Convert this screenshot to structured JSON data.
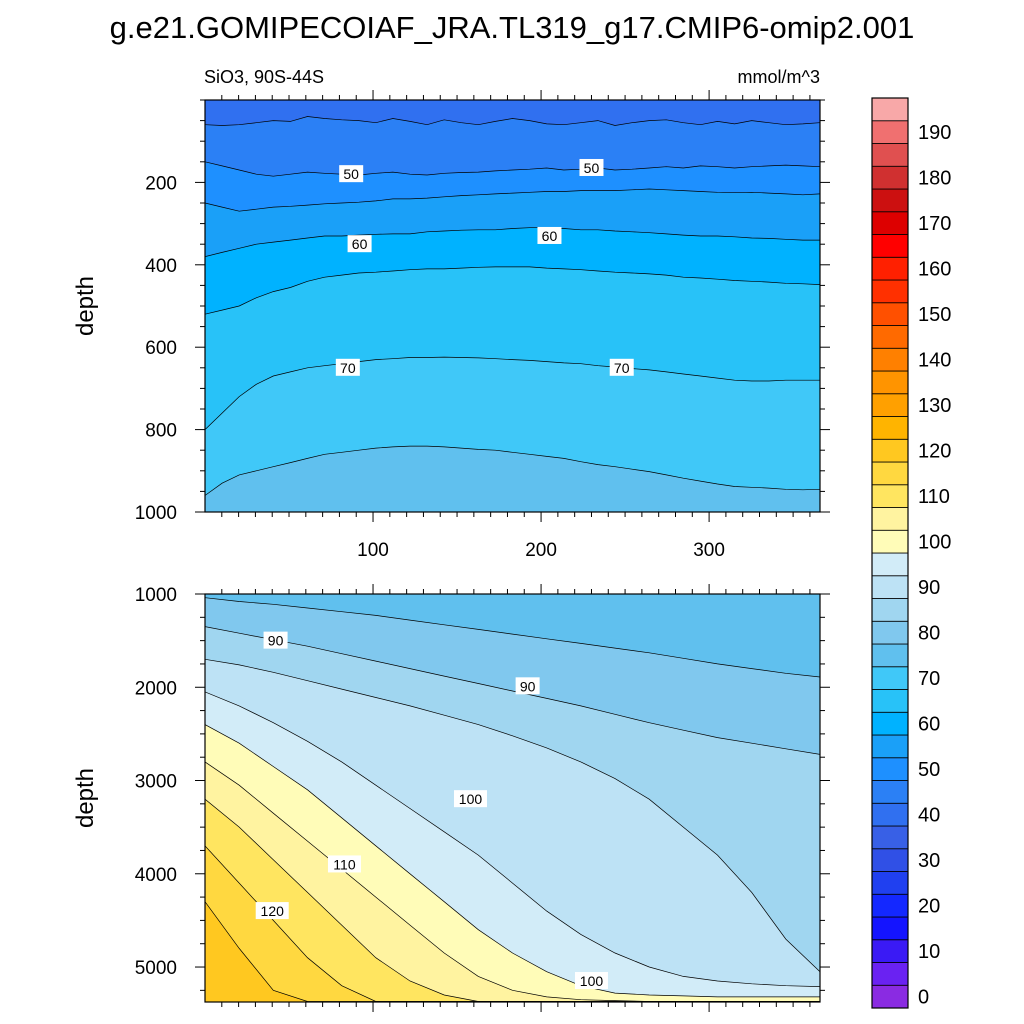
{
  "title": "g.e21.GOMIPECOIAF_JRA.TL319_g17.CMIP6-omip2.001",
  "chart_data": {
    "type": "heatmap",
    "variable": "SiO3",
    "region": "90S-44S",
    "left_string": "SiO3, 90S-44S",
    "units": "mmol/m^3",
    "ylabel": "depth",
    "x_range": [
      0,
      366
    ],
    "x_ticks": [
      100,
      200,
      300
    ],
    "colorbar": {
      "levels": [
        0,
        5,
        10,
        15,
        20,
        25,
        30,
        35,
        40,
        45,
        50,
        55,
        60,
        65,
        70,
        75,
        80,
        85,
        90,
        95,
        100,
        105,
        110,
        115,
        120,
        125,
        130,
        135,
        140,
        145,
        150,
        155,
        160,
        165,
        170,
        175,
        180,
        185,
        190,
        195
      ],
      "tick_labels": [
        "0",
        "10",
        "20",
        "30",
        "40",
        "50",
        "60",
        "70",
        "80",
        "90",
        "100",
        "110",
        "120",
        "130",
        "140",
        "150",
        "160",
        "170",
        "180",
        "190"
      ],
      "colors": [
        "#8a2be2",
        "#6a22f2",
        "#3a1af5",
        "#1414ff",
        "#1428ff",
        "#2040f0",
        "#3050e6",
        "#3860e6",
        "#3070f0",
        "#2b80f5",
        "#1e90ff",
        "#1aa0f8",
        "#00b2ff",
        "#28c2f8",
        "#40c8f8",
        "#60c0ee",
        "#80c8ee",
        "#a0d6f0",
        "#bde2f5",
        "#d2ecf8",
        "#fffcb8",
        "#fff3a0",
        "#ffe560",
        "#ffd840",
        "#ffc820",
        "#ffb400",
        "#ffa000",
        "#ff9400",
        "#ff8000",
        "#ff6a00",
        "#ff5000",
        "#ff3000",
        "#ff2000",
        "#ff0000",
        "#dd0000",
        "#cc1010",
        "#d03030",
        "#e05050",
        "#f07070",
        "#f8a8a8"
      ]
    },
    "panels": [
      {
        "name": "upper",
        "y_range": [
          0,
          1000
        ],
        "y_ticks": [
          200,
          400,
          600,
          800,
          1000
        ],
        "contours": [
          {
            "level": 45,
            "depth": [
              60,
              62,
              60,
              55,
              50,
              52,
              40,
              45,
              48,
              50,
              55,
              45,
              52,
              60,
              48,
              55,
              60,
              52,
              45,
              50,
              58,
              60,
              55,
              50,
              62,
              55,
              50,
              48,
              55,
              60,
              52,
              58,
              50,
              55,
              60,
              58,
              55
            ]
          },
          {
            "level": 50,
            "depth": [
              150,
              160,
              170,
              180,
              185,
              180,
              175,
              178,
              180,
              182,
              178,
              175,
              180,
              182,
              178,
              176,
              175,
              172,
              170,
              168,
              165,
              170,
              168,
              165,
              170,
              168,
              165,
              162,
              165,
              160,
              162,
              165,
              162,
              160,
              158,
              160,
              162
            ]
          },
          {
            "level": 55,
            "depth": [
              250,
              260,
              270,
              265,
              260,
              258,
              255,
              252,
              250,
              248,
              245,
              240,
              240,
              238,
              235,
              232,
              230,
              228,
              226,
              224,
              222,
              222,
              220,
              220,
              220,
              218,
              216,
              218,
              220,
              222,
              224,
              225,
              224,
              226,
              228,
              230,
              228
            ]
          },
          {
            "level": 60,
            "depth": [
              380,
              370,
              360,
              350,
              345,
              340,
              335,
              330,
              330,
              328,
              326,
              325,
              325,
              320,
              318,
              316,
              315,
              315,
              312,
              310,
              310,
              312,
              315,
              315,
              318,
              320,
              322,
              325,
              328,
              330,
              330,
              332,
              335,
              336,
              338,
              340,
              340
            ]
          },
          {
            "level": 65,
            "depth": [
              520,
              510,
              500,
              480,
              465,
              455,
              440,
              430,
              425,
              420,
              418,
              415,
              412,
              410,
              410,
              408,
              406,
              405,
              405,
              405,
              408,
              410,
              412,
              415,
              418,
              420,
              422,
              425,
              430,
              432,
              435,
              438,
              440,
              442,
              445,
              446,
              448
            ]
          },
          {
            "level": 70,
            "depth": [
              800,
              760,
              720,
              690,
              670,
              660,
              650,
              645,
              640,
              635,
              630,
              628,
              625,
              625,
              624,
              625,
              626,
              628,
              630,
              632,
              635,
              638,
              640,
              645,
              648,
              652,
              655,
              660,
              665,
              670,
              675,
              680,
              682,
              682,
              680,
              680,
              680
            ]
          },
          {
            "level": 75,
            "depth": [
              960,
              930,
              910,
              900,
              890,
              880,
              870,
              860,
              855,
              850,
              845,
              842,
              840,
              840,
              842,
              845,
              848,
              850,
              855,
              860,
              865,
              870,
              878,
              885,
              890,
              896,
              902,
              910,
              918,
              925,
              932,
              938,
              940,
              942,
              945,
              946,
              945
            ]
          }
        ],
        "contour_labels": [
          {
            "text": "50",
            "x": 87,
            "depth": 180
          },
          {
            "text": "50",
            "x": 230,
            "depth": 165
          },
          {
            "text": "60",
            "x": 92,
            "depth": 350
          },
          {
            "text": "60",
            "x": 205,
            "depth": 330
          },
          {
            "text": "70",
            "x": 85,
            "depth": 650
          },
          {
            "text": "70",
            "x": 248,
            "depth": 650
          }
        ]
      },
      {
        "name": "lower",
        "y_range": [
          1000,
          5375
        ],
        "y_ticks": [
          1000,
          2000,
          3000,
          4000,
          5000
        ],
        "contours": [
          {
            "level": 80,
            "depth": [
              1040,
              1080,
              1110,
              1150,
              1190,
              1230,
              1280,
              1330,
              1380,
              1430,
              1480,
              1530,
              1580,
              1630,
              1690,
              1750,
              1800,
              1850,
              1890
            ]
          },
          {
            "level": 85,
            "depth": [
              1350,
              1420,
              1490,
              1560,
              1640,
              1720,
              1800,
              1880,
              1960,
              2040,
              2120,
              2200,
              2290,
              2380,
              2460,
              2540,
              2600,
              2660,
              2720
            ]
          },
          {
            "level": 90,
            "depth": [
              1700,
              1760,
              1840,
              1930,
              2020,
              2110,
              2200,
              2300,
              2400,
              2520,
              2650,
              2800,
              2980,
              3200,
              3500,
              3800,
              4200,
              4700,
              5050
            ]
          },
          {
            "level": 95,
            "depth": [
              2050,
              2200,
              2380,
              2580,
              2800,
              3050,
              3300,
              3550,
              3800,
              4100,
              4400,
              4650,
              4850,
              5000,
              5100,
              5150,
              5180,
              5200,
              5210
            ]
          },
          {
            "level": 100,
            "depth": [
              2400,
              2600,
              2850,
              3100,
              3400,
              3700,
              4000,
              4300,
              4600,
              4850,
              5050,
              5200,
              5280,
              5300,
              5310,
              5320,
              5320,
              5320,
              5320
            ]
          },
          {
            "level": 105,
            "depth": [
              2800,
              3050,
              3350,
              3650,
              3950,
              4250,
              4550,
              4850,
              5100,
              5250,
              5320,
              5350,
              5360,
              5370,
              5370,
              5370,
              5370,
              5370,
              5370
            ]
          },
          {
            "level": 110,
            "depth": [
              3200,
              3500,
              3850,
              4200,
              4550,
              4900,
              5150,
              5300,
              5370,
              5370,
              5370,
              5370,
              5370,
              5370,
              5370,
              5370,
              5370,
              5370,
              5370
            ]
          },
          {
            "level": 115,
            "depth": [
              3700,
              4100,
              4500,
              4900,
              5200,
              5370,
              5370,
              5370,
              5370,
              5370,
              5370,
              5370,
              5370,
              5370,
              5370,
              5370,
              5370,
              5370,
              5370
            ]
          },
          {
            "level": 120,
            "depth": [
              4300,
              4800,
              5250,
              5370,
              5370,
              5370,
              5370,
              5370,
              5370,
              5370,
              5370,
              5370,
              5370,
              5370,
              5370,
              5370,
              5370,
              5370,
              5370
            ]
          }
        ],
        "contour_labels": [
          {
            "text": "90",
            "x": 42,
            "depth": 1500
          },
          {
            "text": "90",
            "x": 192,
            "depth": 1990
          },
          {
            "text": "100",
            "x": 158,
            "depth": 3200
          },
          {
            "text": "110",
            "x": 83,
            "depth": 3900
          },
          {
            "text": "120",
            "x": 40,
            "depth": 4400
          },
          {
            "text": "100",
            "x": 230,
            "depth": 5150
          }
        ]
      }
    ]
  }
}
